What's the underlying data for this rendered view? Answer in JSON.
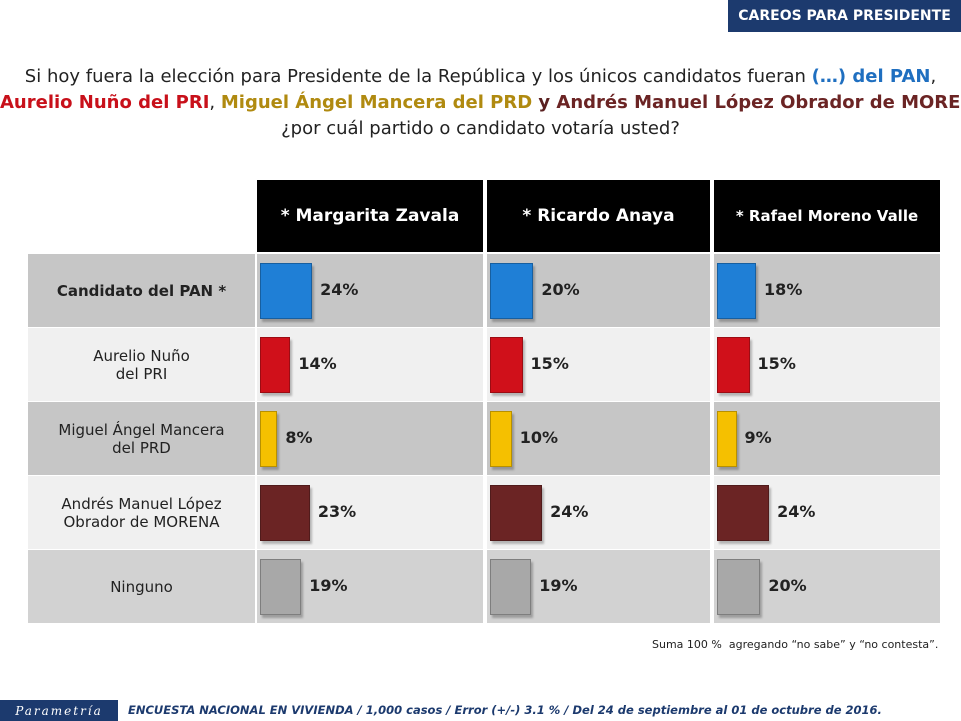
{
  "header": "CAREOS PARA PRESIDENTE",
  "question": [
    [
      {
        "text": "Si hoy fuera la elección para Presidente de la República y los únicos candidatos fueran ",
        "color": "#222222",
        "bold": false
      },
      {
        "text": "(…) del PAN",
        "color": "#1f6fc0",
        "bold": true
      },
      {
        "text": ",",
        "color": "#222222",
        "bold": false
      }
    ],
    [
      {
        "text": "Aurelio Nuño del PRI",
        "color": "#c8101a",
        "bold": true
      },
      {
        "text": ", ",
        "color": "#222222",
        "bold": false
      },
      {
        "text": "Miguel Ángel Mancera del PRD",
        "color": "#b08a10",
        "bold": true
      },
      {
        "text": " y ",
        "color": "#5a2020",
        "bold": true
      },
      {
        "text": "Andrés Manuel López Obrador de MORENA",
        "color": "#6b2424",
        "bold": true
      },
      {
        "text": ",",
        "color": "#222222",
        "bold": false
      }
    ],
    [
      {
        "text": "¿por cuál partido o candidato votaría usted?",
        "color": "#222222",
        "bold": false
      }
    ]
  ],
  "categories": [
    "Candidato del PAN *",
    "Aurelio Nuño del PRI",
    "Miguel Ángel Mancera del PRD",
    "Andrés Manuel López Obrador de MORENA",
    "Ninguno"
  ],
  "chart_data": [
    {
      "type": "bar",
      "title": "* Margarita Zavala",
      "values": [
        24,
        14,
        8,
        23,
        19
      ],
      "value_labels": [
        "24%",
        "14%",
        "8%",
        "23%",
        "19%"
      ],
      "colors": [
        "#1f7fd6",
        "#d0101a",
        "#f5c000",
        "#6b2424",
        "#a8a8a8"
      ]
    },
    {
      "type": "bar",
      "title": "* Ricardo Anaya",
      "values": [
        20,
        15,
        10,
        24,
        19
      ],
      "value_labels": [
        "20%",
        "15%",
        "10%",
        "24%",
        "19%"
      ],
      "colors": [
        "#1f7fd6",
        "#d0101a",
        "#f5c000",
        "#6b2424",
        "#a8a8a8"
      ]
    },
    {
      "type": "bar",
      "title": "* Rafael Moreno Valle",
      "values": [
        18,
        15,
        9,
        24,
        20
      ],
      "value_labels": [
        "18%",
        "15%",
        "9%",
        "24%",
        "20%"
      ],
      "colors": [
        "#1f7fd6",
        "#d0101a",
        "#f5c000",
        "#6b2424",
        "#a8a8a8"
      ]
    }
  ],
  "note": "Suma 100 %  agregando “no sabe” y “no contesta”.",
  "logo": "Parametría",
  "footer": "ENCUESTA NACIONAL EN VIVIENDA / 1,000 casos / Error (+/-) 3.1 % / Del 24 de septiembre al 01 de octubre de 2016."
}
